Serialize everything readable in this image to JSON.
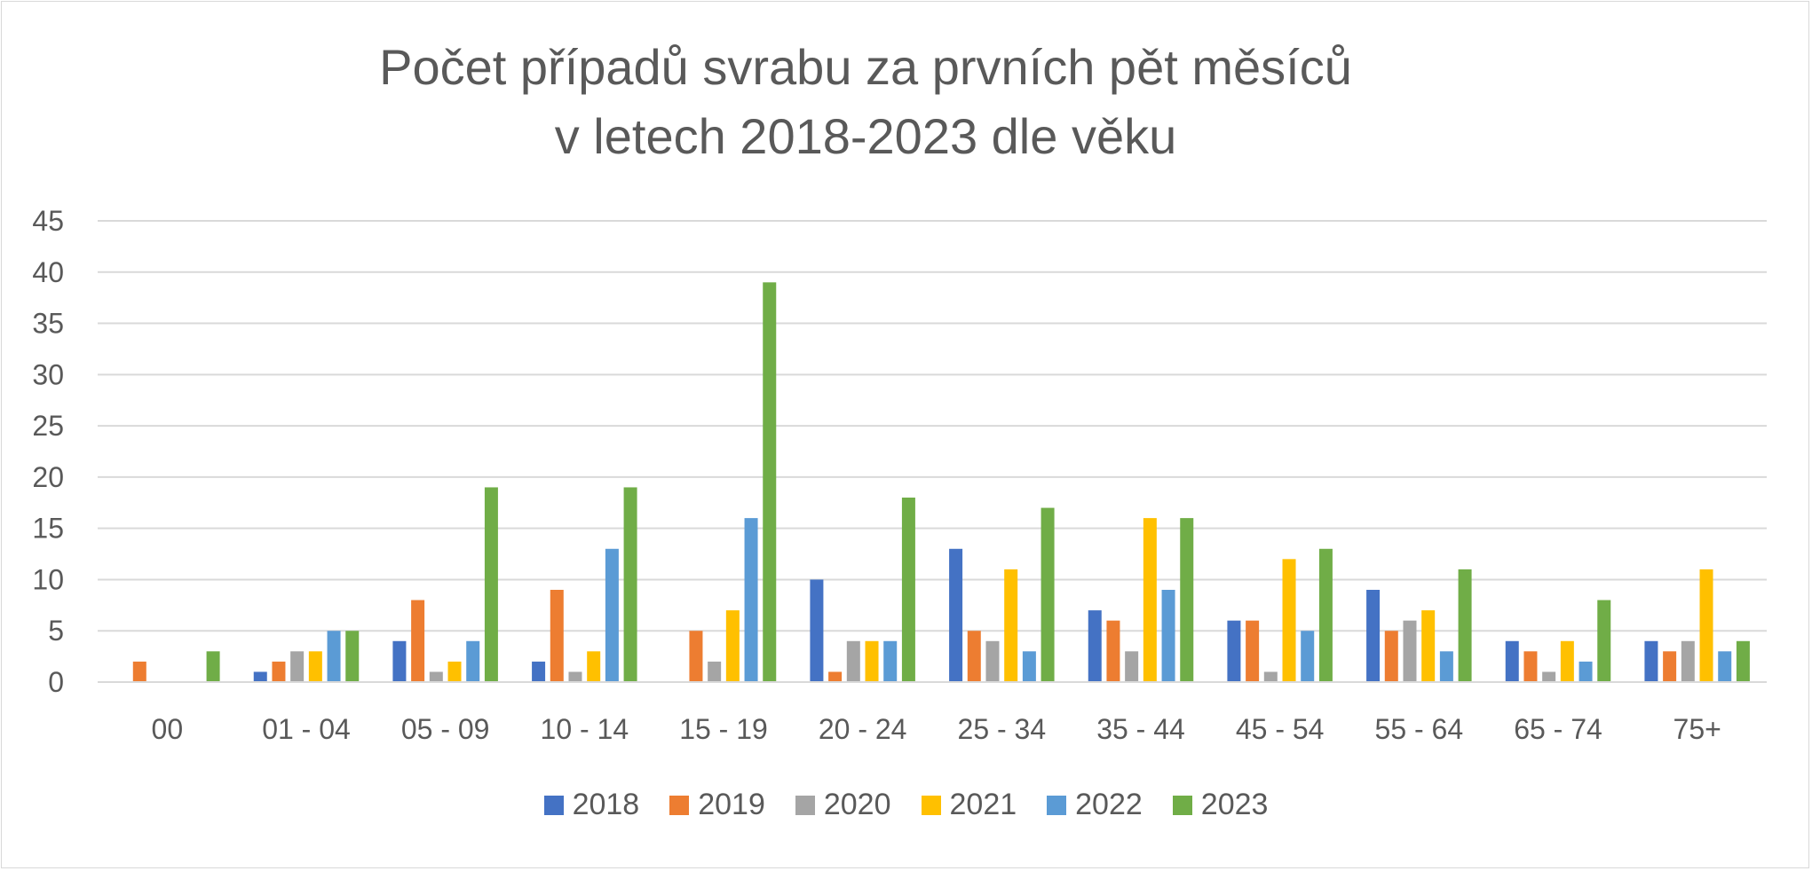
{
  "chart_data": {
    "type": "bar",
    "title": [
      "Počet případů svrabu za prvních pět měsíců",
      "v letech 2018-2023 dle věku"
    ],
    "xlabel": "",
    "ylabel": "",
    "ylim": [
      0,
      45
    ],
    "yticks": [
      "0",
      "5",
      "10",
      "15",
      "20",
      "25",
      "30",
      "35",
      "40",
      "45"
    ],
    "grid": true,
    "legend_position": "bottom",
    "categories": [
      "00",
      "01 - 04",
      "05 - 09",
      "10 - 14",
      "15 - 19",
      "20 - 24",
      "25 - 34",
      "35 - 44",
      "45 - 54",
      "55 - 64",
      "65 - 74",
      "75+"
    ],
    "series": [
      {
        "name": "2018",
        "color": "#4472c4",
        "values": [
          0,
          1,
          4,
          2,
          0,
          10,
          13,
          7,
          6,
          9,
          4,
          4
        ]
      },
      {
        "name": "2019",
        "color": "#ed7d31",
        "values": [
          2,
          2,
          8,
          9,
          5,
          1,
          5,
          6,
          6,
          5,
          3,
          3
        ]
      },
      {
        "name": "2020",
        "color": "#a5a5a5",
        "values": [
          0,
          3,
          1,
          1,
          2,
          4,
          4,
          3,
          1,
          6,
          1,
          4
        ]
      },
      {
        "name": "2021",
        "color": "#ffc000",
        "values": [
          0,
          3,
          2,
          3,
          7,
          4,
          11,
          16,
          12,
          7,
          4,
          11
        ]
      },
      {
        "name": "2022",
        "color": "#5b9bd5",
        "values": [
          0,
          5,
          4,
          13,
          16,
          4,
          3,
          9,
          5,
          3,
          2,
          3
        ]
      },
      {
        "name": "2023",
        "color": "#70ad47",
        "values": [
          3,
          5,
          19,
          19,
          39,
          18,
          17,
          16,
          13,
          11,
          8,
          4
        ]
      }
    ]
  }
}
